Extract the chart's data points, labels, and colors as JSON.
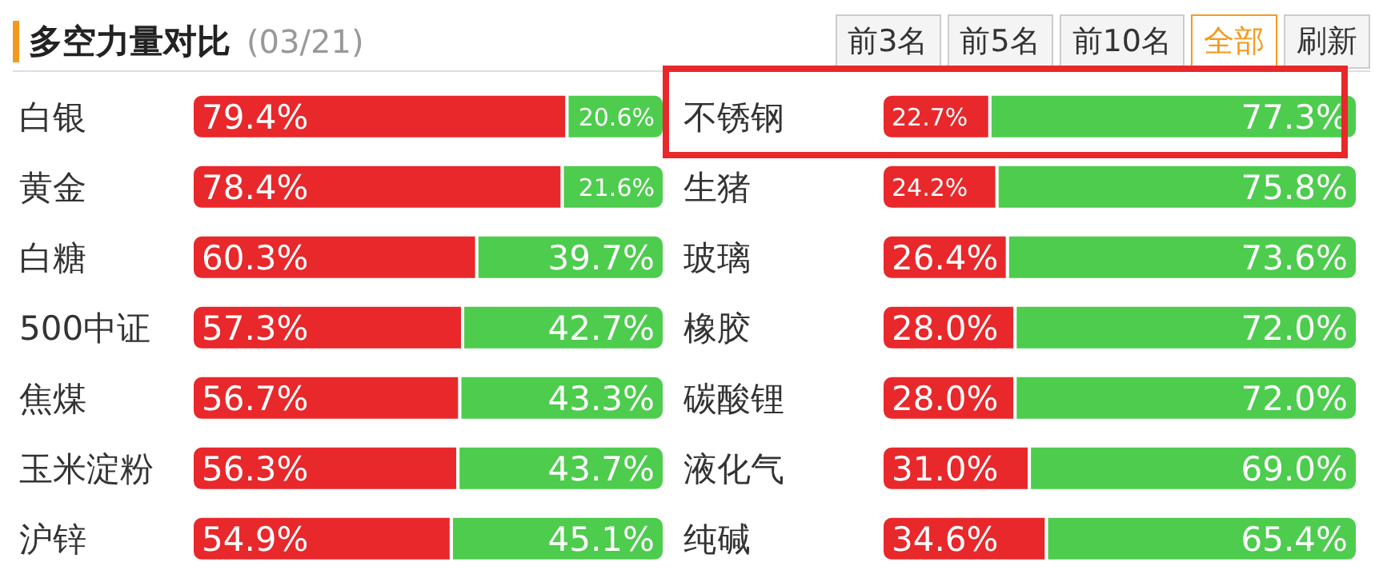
{
  "chart_data": [
    {
      "type": "bar",
      "title": "多空力量对比",
      "subtitle": "(03/21)",
      "orientation": "horizontal",
      "stacked": true,
      "xlim": [
        0,
        100
      ],
      "tick_labels": "y",
      "categories": [
        "白银",
        "黄金",
        "白糖",
        "500中证",
        "焦煤",
        "玉米淀粉",
        "沪锌"
      ],
      "series": [
        {
          "color": "#e8282b",
          "values": [
            79.4,
            78.4,
            60.3,
            57.3,
            56.7,
            56.3,
            54.9
          ],
          "value_labels": [
            "79.4%",
            "78.4%",
            "60.3%",
            "57.3%",
            "56.7%",
            "56.3%",
            "54.9%"
          ]
        },
        {
          "color": "#4dcc4d",
          "values": [
            20.6,
            21.6,
            39.7,
            42.7,
            43.3,
            43.7,
            45.1
          ],
          "value_labels": [
            "20.6%",
            "21.6%",
            "39.7%",
            "42.7%",
            "43.3%",
            "43.7%",
            "45.1%"
          ]
        }
      ]
    },
    {
      "type": "bar",
      "orientation": "horizontal",
      "stacked": true,
      "xlim": [
        0,
        100
      ],
      "tick_labels": "y",
      "annotations": [
        "前3名",
        "前5名",
        "前10名",
        "全部",
        "刷新"
      ],
      "categories": [
        "不锈钢",
        "生猪",
        "玻璃",
        "橡胶",
        "碳酸锂",
        "液化气",
        "纯碱"
      ],
      "series": [
        {
          "color": "#e8282b",
          "values": [
            22.7,
            24.2,
            26.4,
            28.0,
            28.0,
            31.0,
            34.6
          ],
          "value_labels": [
            "22.7%",
            "24.2%",
            "26.4%",
            "28.0%",
            "28.0%",
            "31.0%",
            "34.6%"
          ]
        },
        {
          "color": "#4dcc4d",
          "values": [
            77.3,
            75.8,
            73.6,
            72.0,
            72.0,
            69.0,
            65.4
          ],
          "value_labels": [
            "77.3%",
            "75.8%",
            "73.6%",
            "72.0%",
            "72.0%",
            "69.0%",
            "65.4%"
          ]
        }
      ]
    }
  ]
}
